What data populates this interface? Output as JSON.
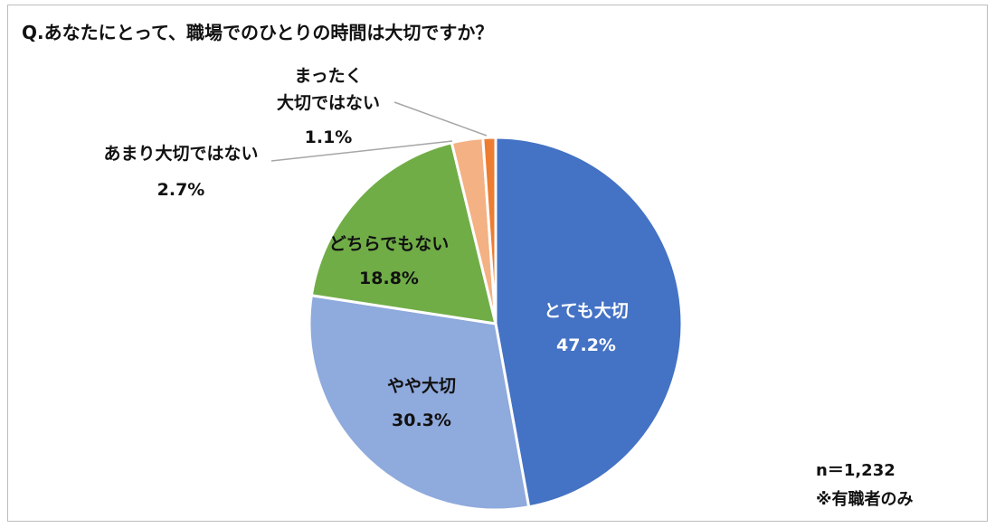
{
  "title": "Q.あなたにとって、職場でのひとりの時間は大切ですか？",
  "notes": {
    "n": "n＝1,232",
    "population": "※有職者のみ"
  },
  "chart_data": {
    "type": "pie",
    "title": "Q.あなたにとって、職場でのひとりの時間は大切ですか？",
    "start_angle_deg": 0,
    "direction": "clockwise",
    "slices": [
      {
        "label": "とても大切",
        "label_lines": [
          "とても大切"
        ],
        "value": 47.2,
        "value_label": "47.2%",
        "color": "#4472c4",
        "label_color": "#ffffff",
        "label_position": "inside"
      },
      {
        "label": "やや大切",
        "label_lines": [
          "やや大切"
        ],
        "value": 30.3,
        "value_label": "30.3%",
        "color": "#8faadc",
        "label_color": "#111111",
        "label_position": "inside"
      },
      {
        "label": "どちらでもない",
        "label_lines": [
          "どちらでもない"
        ],
        "value": 18.8,
        "value_label": "18.8%",
        "color": "#70ad47",
        "label_color": "#111111",
        "label_position": "inside"
      },
      {
        "label": "あまり大切ではない",
        "label_lines": [
          "あまり大切ではない"
        ],
        "value": 2.7,
        "value_label": "2.7%",
        "color": "#f4b183",
        "label_color": "#111111",
        "label_position": "outside-left"
      },
      {
        "label": "まったく大切ではない",
        "label_lines": [
          "まったく",
          "大切ではない"
        ],
        "value": 1.1,
        "value_label": "1.1%",
        "color": "#ed7d31",
        "label_color": "#111111",
        "label_position": "outside-top"
      }
    ],
    "legend": "none",
    "n": "n＝1,232",
    "footnote": "※有職者のみ"
  }
}
